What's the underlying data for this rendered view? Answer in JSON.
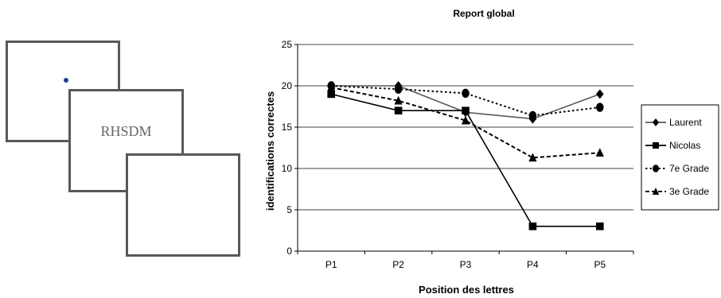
{
  "stimulus_panel": {
    "stimulus_text": "RHSDM"
  },
  "chart_data": {
    "type": "line",
    "title": "Report global",
    "xlabel": "Position des lettres",
    "ylabel": "identifications correctes",
    "categories": [
      "P1",
      "P2",
      "P3",
      "P4",
      "P5"
    ],
    "ylim": [
      0,
      25
    ],
    "yticks": [
      "0",
      "5",
      "10",
      "15",
      "20",
      "25"
    ],
    "grid": "horizontal",
    "legend_position": "right",
    "series": [
      {
        "name": "Laurent",
        "values": [
          20,
          20,
          16.8,
          16,
          19
        ],
        "marker": "diamond",
        "line": "solid",
        "color": "#595959"
      },
      {
        "name": "Nicolas",
        "values": [
          19,
          17,
          17,
          3,
          3
        ],
        "marker": "square",
        "line": "solid",
        "color": "#000000"
      },
      {
        "name": "7e Grade",
        "values": [
          20,
          19.6,
          19.1,
          16.4,
          17.4
        ],
        "marker": "circle",
        "line": "dotted",
        "color": "#000000"
      },
      {
        "name": "3e Grade",
        "values": [
          19.8,
          18.2,
          15.8,
          11.3,
          11.9
        ],
        "marker": "triangle",
        "line": "dashed",
        "color": "#000000"
      }
    ]
  }
}
